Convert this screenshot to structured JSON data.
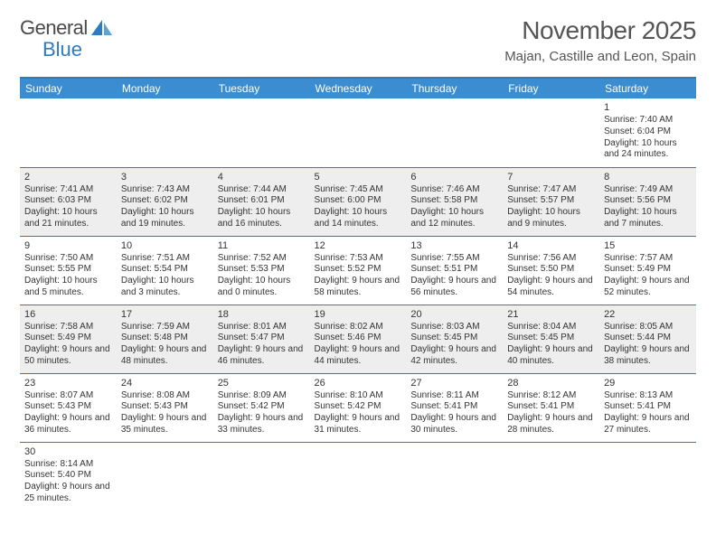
{
  "logo": {
    "part1": "General",
    "part2": "Blue"
  },
  "title": "November 2025",
  "location": "Majan, Castille and Leon, Spain",
  "colors": {
    "headerBg": "#3a8dd0",
    "borderBlue": "#2f7bbf",
    "shade": "#eeeeee",
    "text": "#333333"
  },
  "dow": [
    "Sunday",
    "Monday",
    "Tuesday",
    "Wednesday",
    "Thursday",
    "Friday",
    "Saturday"
  ],
  "weeks": [
    [
      null,
      null,
      null,
      null,
      null,
      null,
      {
        "n": "1",
        "sr": "7:40 AM",
        "ss": "6:04 PM",
        "dl": "10 hours and 24 minutes."
      }
    ],
    [
      {
        "n": "2",
        "sr": "7:41 AM",
        "ss": "6:03 PM",
        "dl": "10 hours and 21 minutes."
      },
      {
        "n": "3",
        "sr": "7:43 AM",
        "ss": "6:02 PM",
        "dl": "10 hours and 19 minutes."
      },
      {
        "n": "4",
        "sr": "7:44 AM",
        "ss": "6:01 PM",
        "dl": "10 hours and 16 minutes."
      },
      {
        "n": "5",
        "sr": "7:45 AM",
        "ss": "6:00 PM",
        "dl": "10 hours and 14 minutes."
      },
      {
        "n": "6",
        "sr": "7:46 AM",
        "ss": "5:58 PM",
        "dl": "10 hours and 12 minutes."
      },
      {
        "n": "7",
        "sr": "7:47 AM",
        "ss": "5:57 PM",
        "dl": "10 hours and 9 minutes."
      },
      {
        "n": "8",
        "sr": "7:49 AM",
        "ss": "5:56 PM",
        "dl": "10 hours and 7 minutes."
      }
    ],
    [
      {
        "n": "9",
        "sr": "7:50 AM",
        "ss": "5:55 PM",
        "dl": "10 hours and 5 minutes."
      },
      {
        "n": "10",
        "sr": "7:51 AM",
        "ss": "5:54 PM",
        "dl": "10 hours and 3 minutes."
      },
      {
        "n": "11",
        "sr": "7:52 AM",
        "ss": "5:53 PM",
        "dl": "10 hours and 0 minutes."
      },
      {
        "n": "12",
        "sr": "7:53 AM",
        "ss": "5:52 PM",
        "dl": "9 hours and 58 minutes."
      },
      {
        "n": "13",
        "sr": "7:55 AM",
        "ss": "5:51 PM",
        "dl": "9 hours and 56 minutes."
      },
      {
        "n": "14",
        "sr": "7:56 AM",
        "ss": "5:50 PM",
        "dl": "9 hours and 54 minutes."
      },
      {
        "n": "15",
        "sr": "7:57 AM",
        "ss": "5:49 PM",
        "dl": "9 hours and 52 minutes."
      }
    ],
    [
      {
        "n": "16",
        "sr": "7:58 AM",
        "ss": "5:49 PM",
        "dl": "9 hours and 50 minutes."
      },
      {
        "n": "17",
        "sr": "7:59 AM",
        "ss": "5:48 PM",
        "dl": "9 hours and 48 minutes."
      },
      {
        "n": "18",
        "sr": "8:01 AM",
        "ss": "5:47 PM",
        "dl": "9 hours and 46 minutes."
      },
      {
        "n": "19",
        "sr": "8:02 AM",
        "ss": "5:46 PM",
        "dl": "9 hours and 44 minutes."
      },
      {
        "n": "20",
        "sr": "8:03 AM",
        "ss": "5:45 PM",
        "dl": "9 hours and 42 minutes."
      },
      {
        "n": "21",
        "sr": "8:04 AM",
        "ss": "5:45 PM",
        "dl": "9 hours and 40 minutes."
      },
      {
        "n": "22",
        "sr": "8:05 AM",
        "ss": "5:44 PM",
        "dl": "9 hours and 38 minutes."
      }
    ],
    [
      {
        "n": "23",
        "sr": "8:07 AM",
        "ss": "5:43 PM",
        "dl": "9 hours and 36 minutes."
      },
      {
        "n": "24",
        "sr": "8:08 AM",
        "ss": "5:43 PM",
        "dl": "9 hours and 35 minutes."
      },
      {
        "n": "25",
        "sr": "8:09 AM",
        "ss": "5:42 PM",
        "dl": "9 hours and 33 minutes."
      },
      {
        "n": "26",
        "sr": "8:10 AM",
        "ss": "5:42 PM",
        "dl": "9 hours and 31 minutes."
      },
      {
        "n": "27",
        "sr": "8:11 AM",
        "ss": "5:41 PM",
        "dl": "9 hours and 30 minutes."
      },
      {
        "n": "28",
        "sr": "8:12 AM",
        "ss": "5:41 PM",
        "dl": "9 hours and 28 minutes."
      },
      {
        "n": "29",
        "sr": "8:13 AM",
        "ss": "5:41 PM",
        "dl": "9 hours and 27 minutes."
      }
    ],
    [
      {
        "n": "30",
        "sr": "8:14 AM",
        "ss": "5:40 PM",
        "dl": "9 hours and 25 minutes."
      },
      null,
      null,
      null,
      null,
      null,
      null
    ]
  ],
  "labels": {
    "sunrise": "Sunrise: ",
    "sunset": "Sunset: ",
    "daylight": "Daylight: "
  }
}
